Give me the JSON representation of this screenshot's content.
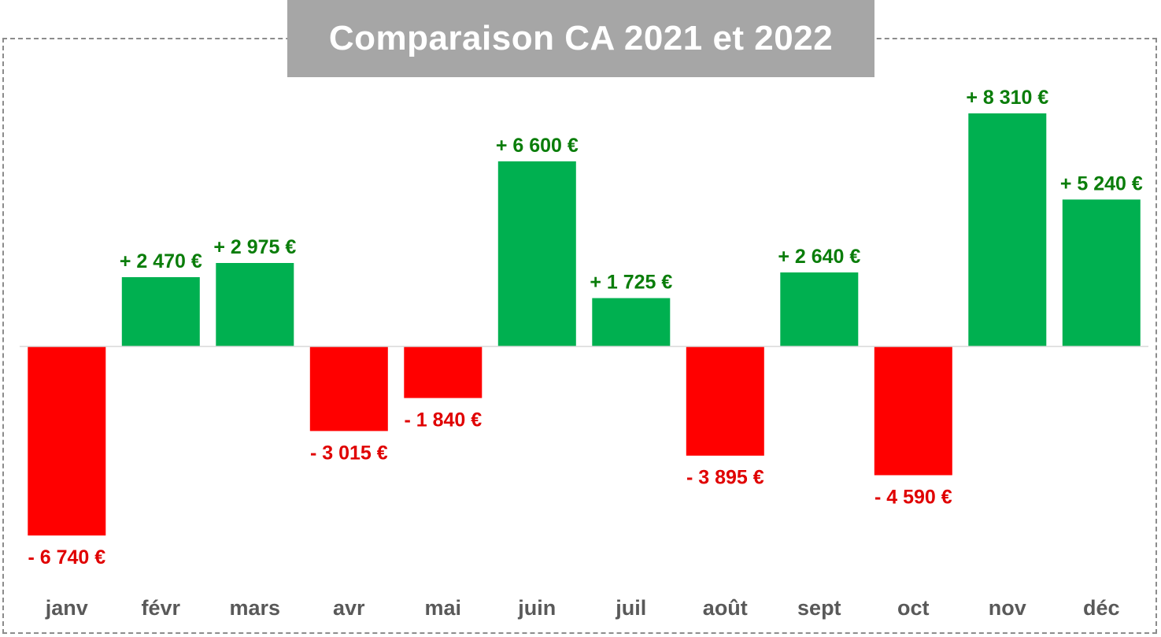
{
  "chart_data": {
    "type": "bar",
    "title": "Comparaison CA 2021 et 2022",
    "categories": [
      "janv",
      "févr",
      "mars",
      "avr",
      "mai",
      "juin",
      "juil",
      "août",
      "sept",
      "oct",
      "nov",
      "déc"
    ],
    "values": [
      -6740,
      2470,
      2975,
      -3015,
      -1840,
      6600,
      1725,
      -3895,
      2640,
      -4590,
      8310,
      5240
    ],
    "data_labels": [
      "- 6 740 €",
      "+ 2 470 €",
      "+ 2 975 €",
      "- 3 015 €",
      "- 1 840 €",
      "+ 6 600 €",
      "+ 1 725 €",
      "- 3 895 €",
      "+ 2 640 €",
      "- 4 590 €",
      "+ 8 310 €",
      "+ 5 240 €"
    ],
    "xlabel": "",
    "ylabel": "",
    "ylim": [
      -8000,
      10000
    ],
    "grid": false,
    "legend": "none",
    "colors": {
      "positive_bar": "#00b050",
      "negative_bar": "#ff0000",
      "positive_label": "#0a7d0a",
      "negative_label": "#e00000",
      "category_label": "#595959",
      "title_background": "#a6a6a6",
      "title_text": "#ffffff"
    }
  }
}
